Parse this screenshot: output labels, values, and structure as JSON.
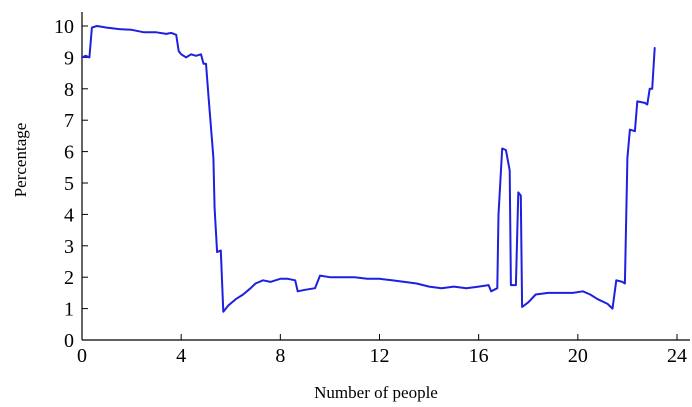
{
  "chart_data": {
    "type": "line",
    "title": "",
    "xlabel": "Number of people",
    "ylabel": "Percentage",
    "xlim": [
      0,
      24
    ],
    "ylim": [
      0,
      10
    ],
    "x_ticks": [
      0,
      4,
      8,
      12,
      16,
      20,
      24
    ],
    "y_ticks": [
      0,
      1,
      2,
      3,
      4,
      5,
      6,
      7,
      8,
      9,
      10
    ],
    "grid": false,
    "legend": "none",
    "series": [
      {
        "color": "#1f1fe0",
        "points": [
          [
            0.0,
            9.0
          ],
          [
            0.15,
            9.05
          ],
          [
            0.3,
            9.0
          ],
          [
            0.4,
            9.95
          ],
          [
            0.6,
            10.0
          ],
          [
            1.0,
            9.95
          ],
          [
            1.5,
            9.9
          ],
          [
            2.0,
            9.88
          ],
          [
            2.5,
            9.8
          ],
          [
            3.0,
            9.8
          ],
          [
            3.4,
            9.75
          ],
          [
            3.6,
            9.78
          ],
          [
            3.8,
            9.72
          ],
          [
            3.9,
            9.2
          ],
          [
            4.0,
            9.1
          ],
          [
            4.2,
            9.0
          ],
          [
            4.4,
            9.1
          ],
          [
            4.6,
            9.05
          ],
          [
            4.8,
            9.1
          ],
          [
            4.9,
            8.8
          ],
          [
            5.0,
            8.8
          ],
          [
            5.1,
            7.8
          ],
          [
            5.2,
            6.8
          ],
          [
            5.3,
            5.8
          ],
          [
            5.35,
            4.2
          ],
          [
            5.45,
            2.8
          ],
          [
            5.6,
            2.85
          ],
          [
            5.7,
            0.9
          ],
          [
            5.9,
            1.1
          ],
          [
            6.2,
            1.3
          ],
          [
            6.5,
            1.45
          ],
          [
            6.8,
            1.65
          ],
          [
            7.0,
            1.8
          ],
          [
            7.3,
            1.9
          ],
          [
            7.6,
            1.85
          ],
          [
            8.0,
            1.95
          ],
          [
            8.3,
            1.95
          ],
          [
            8.6,
            1.9
          ],
          [
            8.7,
            1.55
          ],
          [
            9.0,
            1.6
          ],
          [
            9.4,
            1.65
          ],
          [
            9.6,
            2.05
          ],
          [
            10.0,
            2.0
          ],
          [
            10.5,
            2.0
          ],
          [
            11.0,
            2.0
          ],
          [
            11.5,
            1.95
          ],
          [
            12.0,
            1.95
          ],
          [
            12.5,
            1.9
          ],
          [
            13.0,
            1.85
          ],
          [
            13.5,
            1.8
          ],
          [
            14.0,
            1.7
          ],
          [
            14.5,
            1.65
          ],
          [
            15.0,
            1.7
          ],
          [
            15.5,
            1.65
          ],
          [
            16.0,
            1.7
          ],
          [
            16.4,
            1.75
          ],
          [
            16.5,
            1.55
          ],
          [
            16.75,
            1.65
          ],
          [
            16.8,
            4.0
          ],
          [
            16.95,
            6.1
          ],
          [
            17.1,
            6.05
          ],
          [
            17.25,
            5.4
          ],
          [
            17.3,
            1.75
          ],
          [
            17.5,
            1.75
          ],
          [
            17.6,
            4.7
          ],
          [
            17.7,
            4.6
          ],
          [
            17.75,
            1.05
          ],
          [
            18.0,
            1.2
          ],
          [
            18.3,
            1.45
          ],
          [
            18.8,
            1.5
          ],
          [
            19.3,
            1.5
          ],
          [
            19.8,
            1.5
          ],
          [
            20.2,
            1.55
          ],
          [
            20.5,
            1.45
          ],
          [
            20.8,
            1.3
          ],
          [
            21.2,
            1.15
          ],
          [
            21.4,
            1.0
          ],
          [
            21.55,
            1.9
          ],
          [
            21.8,
            1.85
          ],
          [
            21.9,
            1.8
          ],
          [
            22.0,
            5.8
          ],
          [
            22.1,
            6.7
          ],
          [
            22.3,
            6.65
          ],
          [
            22.4,
            7.6
          ],
          [
            22.7,
            7.55
          ],
          [
            22.8,
            7.5
          ],
          [
            22.9,
            8.0
          ],
          [
            23.0,
            8.0
          ],
          [
            23.1,
            9.3
          ]
        ]
      }
    ]
  }
}
